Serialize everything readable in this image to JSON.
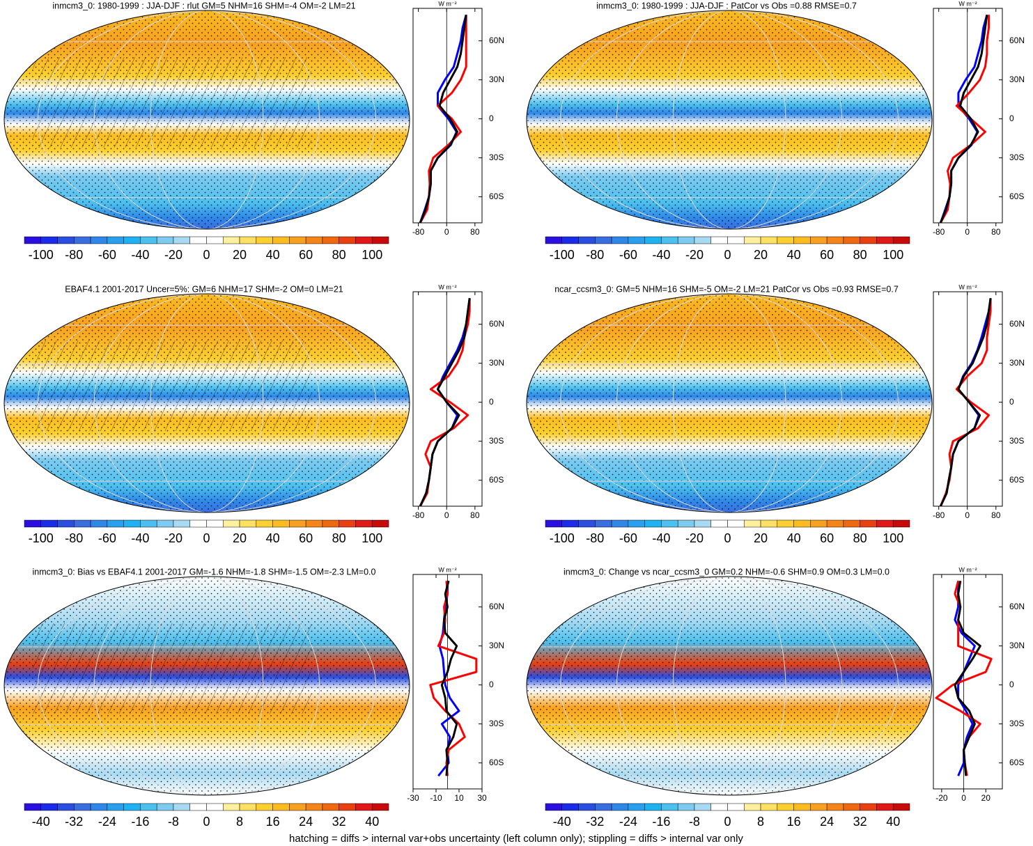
{
  "caption": "hatching = diffs > internal var+obs uncertainty (left column only); stippling = diffs > internal var only",
  "colormap": [
    "#2a0fe0",
    "#1a2ce8",
    "#2a4fe0",
    "#3a6ee0",
    "#2f88e8",
    "#28a0ee",
    "#1fb2f0",
    "#4cc0ee",
    "#7dcbf0",
    "#a8dbf3",
    "#ffffff",
    "#ffffff",
    "#fff0a0",
    "#ffe060",
    "#fdd030",
    "#fbbc20",
    "#f8a020",
    "#f58518",
    "#f06810",
    "#e84010",
    "#e01818",
    "#c80a0a"
  ],
  "chart_data": [
    {
      "type": "line",
      "title": "inmcm3_0: 1980-1999 : JJA-DJF : rlut GM=5 NHM=16 SHM=-4 OM=-2 LM=21",
      "colorbar_ticks": [
        -100,
        -80,
        -60,
        -40,
        -20,
        0,
        20,
        40,
        60,
        80,
        100
      ],
      "x_label": "W m⁻²",
      "y": [
        -80,
        -70,
        -60,
        -50,
        -40,
        -30,
        -20,
        -10,
        0,
        10,
        20,
        30,
        40,
        50,
        60,
        70,
        80
      ],
      "series": [
        {
          "color": "#0000ff",
          "values": [
            -75,
            -62,
            -50,
            -45,
            -45,
            -25,
            12,
            28,
            5,
            -25,
            -25,
            -5,
            20,
            30,
            40,
            45,
            55
          ]
        },
        {
          "color": "#ff0000",
          "values": [
            -75,
            -55,
            -50,
            -48,
            -50,
            -38,
            5,
            40,
            15,
            -25,
            15,
            40,
            55,
            55,
            55,
            55,
            55
          ]
        },
        {
          "color": "#000000",
          "values": [
            -75,
            -60,
            -50,
            -45,
            -45,
            -25,
            10,
            30,
            10,
            -20,
            -10,
            10,
            30,
            40,
            45,
            50,
            55
          ]
        }
      ],
      "xlim": [
        -95,
        100
      ],
      "xticks": [
        -80,
        0,
        80
      ],
      "ylim": [
        -80,
        85
      ],
      "yticks": [
        {
          "value": 60,
          "label": "60N"
        },
        {
          "value": 30,
          "label": "30N"
        },
        0,
        {
          "value": -30,
          "label": "30S"
        },
        {
          "value": -60,
          "label": "60S"
        }
      ]
    },
    {
      "type": "line",
      "title": "inmcm3_0: 1980-1999 : JJA-DJF : PatCor vs Obs =0.88 RMSE=0.7",
      "colorbar_ticks": [
        -100,
        -80,
        -60,
        -40,
        -20,
        0,
        20,
        40,
        60,
        80,
        100
      ],
      "x_label": "W m⁻²",
      "y": [
        -80,
        -70,
        -60,
        -50,
        -40,
        -30,
        -20,
        -10,
        0,
        10,
        20,
        30,
        40,
        50,
        60,
        70,
        80
      ],
      "series": [
        {
          "color": "#0000ff",
          "values": [
            -75,
            -62,
            -50,
            -45,
            -45,
            -25,
            12,
            28,
            5,
            -25,
            -25,
            -5,
            20,
            30,
            40,
            45,
            55
          ]
        },
        {
          "color": "#ff0000",
          "values": [
            -75,
            -55,
            -50,
            -48,
            -55,
            -40,
            10,
            50,
            10,
            -30,
            5,
            35,
            50,
            55,
            55,
            60,
            60
          ]
        },
        {
          "color": "#000000",
          "values": [
            -75,
            -60,
            -50,
            -45,
            -45,
            -25,
            10,
            30,
            10,
            -20,
            -10,
            10,
            30,
            40,
            45,
            50,
            55
          ]
        }
      ],
      "xlim": [
        -95,
        98
      ],
      "xticks": [
        -80,
        0,
        80
      ],
      "ylim": [
        -80,
        85
      ],
      "yticks": [
        {
          "value": 60,
          "label": "60N"
        },
        {
          "value": 30,
          "label": "30N"
        },
        0,
        {
          "value": -30,
          "label": "30S"
        },
        {
          "value": -60,
          "label": "60S"
        }
      ]
    },
    {
      "type": "line",
      "title": "EBAF4.1 2001-2017 Uncer=5%: GM=6 NHM=17 SHM=-2 OM=0 LM=21",
      "colorbar_ticks": [
        -100,
        -80,
        -60,
        -40,
        -20,
        0,
        20,
        40,
        60,
        80,
        100
      ],
      "x_label": "W m⁻²",
      "y": [
        -80,
        -70,
        -60,
        -50,
        -40,
        -30,
        -20,
        -10,
        0,
        10,
        20,
        30,
        40,
        50,
        60,
        70,
        80
      ],
      "series": [
        {
          "color": "#0000ff",
          "values": [
            -75,
            -58,
            -50,
            -45,
            -40,
            -25,
            15,
            30,
            0,
            -25,
            -10,
            10,
            30,
            45,
            55,
            60,
            65
          ]
        },
        {
          "color": "#ff0000",
          "values": [
            -75,
            -55,
            -50,
            -45,
            -60,
            -45,
            20,
            60,
            10,
            -45,
            5,
            30,
            45,
            50,
            60,
            65,
            65
          ]
        },
        {
          "color": "#000000",
          "values": [
            -75,
            -58,
            -50,
            -45,
            -40,
            -25,
            15,
            35,
            0,
            -25,
            -5,
            15,
            35,
            50,
            55,
            60,
            65
          ]
        }
      ],
      "xlim": [
        -95,
        100
      ],
      "xticks": [
        -80,
        0,
        80
      ],
      "ylim": [
        -80,
        85
      ],
      "yticks": [
        {
          "value": 60,
          "label": "60N"
        },
        {
          "value": 30,
          "label": "30N"
        },
        0,
        {
          "value": -30,
          "label": "30S"
        },
        {
          "value": -60,
          "label": "60S"
        }
      ]
    },
    {
      "type": "line",
      "title": "ncar_ccsm3_0: GM=5 NHM=16 SHM=-5 OM=-2 LM=21 PatCor vs Obs =0.93 RMSE=0.7",
      "colorbar_ticks": [
        -100,
        -80,
        -60,
        -40,
        -20,
        0,
        20,
        40,
        60,
        80,
        100
      ],
      "x_label": "W m⁻²",
      "y": [
        -80,
        -70,
        -60,
        -50,
        -40,
        -30,
        -20,
        -10,
        0,
        10,
        20,
        30,
        40,
        50,
        60,
        70,
        80
      ],
      "series": [
        {
          "color": "#0000ff",
          "values": [
            -75,
            -58,
            -52,
            -45,
            -40,
            -25,
            20,
            32,
            5,
            -25,
            -12,
            12,
            28,
            40,
            50,
            60,
            65
          ]
        },
        {
          "color": "#ff0000",
          "values": [
            -75,
            -60,
            -50,
            -45,
            -50,
            -40,
            30,
            60,
            10,
            -30,
            0,
            40,
            55,
            55,
            60,
            65,
            65
          ]
        },
        {
          "color": "#000000",
          "values": [
            -75,
            -58,
            -52,
            -45,
            -40,
            -25,
            20,
            35,
            5,
            -25,
            -10,
            15,
            30,
            45,
            55,
            60,
            65
          ]
        }
      ],
      "xlim": [
        -95,
        98
      ],
      "xticks": [
        -80,
        0,
        80
      ],
      "ylim": [
        -80,
        85
      ],
      "yticks": [
        {
          "value": 60,
          "label": "60N"
        },
        {
          "value": 30,
          "label": "30N"
        },
        0,
        {
          "value": -30,
          "label": "30S"
        },
        {
          "value": -60,
          "label": "60S"
        }
      ]
    },
    {
      "type": "line",
      "title": "inmcm3_0: Bias vs EBAF4.1 2001-2017 GM=-1.6 NHM=-1.8 SHM=-1.5 OM=-2.3 LM=0.0",
      "colorbar_ticks": [
        -40,
        -32,
        -24,
        -16,
        -8,
        0,
        8,
        16,
        24,
        32,
        40
      ],
      "x_label": "W m⁻²",
      "y": [
        -80,
        -70,
        -60,
        -50,
        -40,
        -30,
        -20,
        -10,
        0,
        10,
        20,
        30,
        40,
        50,
        60,
        70,
        80
      ],
      "series": [
        {
          "color": "#0000ff",
          "values": [
            null,
            -8,
            1,
            0,
            2,
            -5,
            10,
            2,
            -2,
            -3,
            -4,
            -7,
            -4,
            -3,
            -2,
            0,
            0
          ]
        },
        {
          "color": "#ff0000",
          "values": [
            null,
            0,
            -1,
            1,
            15,
            10,
            -2,
            -12,
            -15,
            25,
            25,
            -8,
            -3,
            -2,
            -3,
            0,
            -1
          ]
        },
        {
          "color": "#000000",
          "values": [
            null,
            -1,
            0,
            -1,
            5,
            8,
            -1,
            -2,
            -5,
            0,
            3,
            8,
            -2,
            -3,
            0,
            -2,
            1
          ]
        }
      ],
      "xlim": [
        -30,
        30
      ],
      "xticks": [
        -30,
        -10,
        10,
        30
      ],
      "ylim": [
        -80,
        85
      ],
      "yticks": [
        {
          "value": 60,
          "label": "60N"
        },
        {
          "value": 30,
          "label": "30N"
        },
        0,
        {
          "value": -30,
          "label": "30S"
        },
        {
          "value": -60,
          "label": "60S"
        }
      ]
    },
    {
      "type": "line",
      "title": "inmcm3_0: Change vs ncar_ccsm3_0 GM=0.2 NHM=-0.6 SHM=0.9 OM=0.3 LM=0.0",
      "colorbar_ticks": [
        -40,
        -32,
        -24,
        -16,
        -8,
        0,
        8,
        16,
        24,
        32,
        40
      ],
      "x_label": "W m⁻²",
      "y": [
        -80,
        -70,
        -60,
        -50,
        -40,
        -30,
        -20,
        -10,
        0,
        10,
        20,
        30,
        40,
        50,
        60,
        70,
        80
      ],
      "series": [
        {
          "color": "#0000ff",
          "values": [
            null,
            -5,
            0,
            0,
            3,
            8,
            2,
            -5,
            -5,
            0,
            5,
            10,
            -2,
            -8,
            -5,
            -5,
            -5
          ]
        },
        {
          "color": "#ff0000",
          "values": [
            null,
            3,
            1,
            0,
            5,
            15,
            -3,
            -25,
            -10,
            20,
            25,
            -5,
            -5,
            -5,
            -3,
            -8,
            -5
          ]
        },
        {
          "color": "#000000",
          "values": [
            null,
            2,
            1,
            0,
            5,
            10,
            5,
            -5,
            -8,
            0,
            8,
            15,
            0,
            -5,
            -3,
            -5,
            -3
          ]
        }
      ],
      "xlim": [
        -27.5,
        35
      ],
      "xticks": [
        -20,
        0,
        20
      ],
      "ylim": [
        -80,
        85
      ],
      "yticks": [
        {
          "value": 60,
          "label": "60N"
        },
        {
          "value": 30,
          "label": "30N"
        },
        0,
        {
          "value": -30,
          "label": "30S"
        },
        {
          "value": -60,
          "label": "60S"
        }
      ]
    }
  ]
}
